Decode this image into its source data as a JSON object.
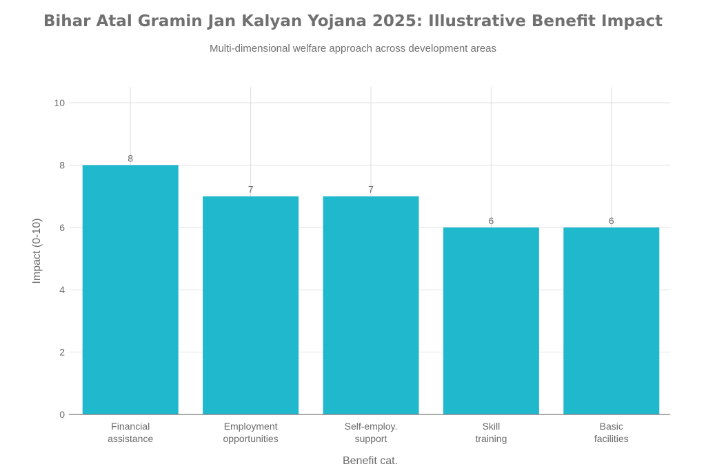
{
  "chart_data": {
    "type": "bar",
    "title": "Bihar Atal Gramin Jan Kalyan Yojana 2025: Illustrative Benefit Impact",
    "subtitle": "Multi-dimensional welfare approach across development areas",
    "xlabel": "Benefit cat.",
    "ylabel": "Impact (0-10)",
    "categories": [
      [
        "Financial",
        "assistance"
      ],
      [
        "Employment",
        "opportunities"
      ],
      [
        "Self-employ.",
        "support"
      ],
      [
        "Skill",
        "training"
      ],
      [
        "Basic",
        "facilities"
      ]
    ],
    "values": [
      8,
      7,
      7,
      6,
      6
    ],
    "data_labels": [
      "8",
      "7",
      "7",
      "6",
      "6"
    ],
    "ylim": [
      0,
      10.5
    ],
    "yticks": [
      0,
      2,
      4,
      6,
      8,
      10
    ],
    "grid": true,
    "bar_color": "#1FB8CD"
  }
}
